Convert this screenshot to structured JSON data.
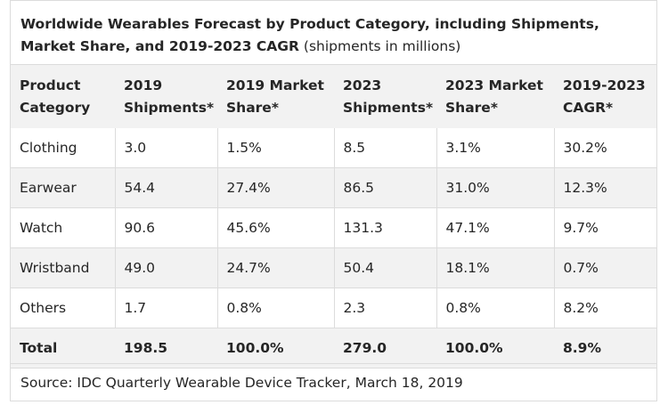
{
  "chart_data": {
    "type": "table",
    "title": "Worldwide Wearables Forecast by Product Category, including Shipments, Market Share, and 2019-2023 CAGR",
    "subtitle": "(shipments in millions)",
    "columns": [
      [
        "Product",
        "Category"
      ],
      [
        "2019",
        "Shipments*"
      ],
      [
        "2019 Market",
        "Share*"
      ],
      [
        "2023",
        "Shipments*"
      ],
      [
        "2023 Market",
        "Share*"
      ],
      [
        "2019-2023",
        "CAGR*"
      ]
    ],
    "rows": [
      [
        "Clothing",
        "3.0",
        "1.5%",
        "8.5",
        "3.1%",
        "30.2%"
      ],
      [
        "Earwear",
        "54.4",
        "27.4%",
        "86.5",
        "31.0%",
        "12.3%"
      ],
      [
        "Watch",
        "90.6",
        "45.6%",
        "131.3",
        "47.1%",
        "9.7%"
      ],
      [
        "Wristband",
        "49.0",
        "24.7%",
        "50.4",
        "18.1%",
        "0.7%"
      ],
      [
        "Others",
        "1.7",
        "0.8%",
        "2.3",
        "0.8%",
        "8.2%"
      ]
    ],
    "total": [
      "Total",
      "198.5",
      "100.0%",
      "279.0",
      "100.0%",
      "8.9%"
    ],
    "source": "Source: IDC Quarterly Wearable Device Tracker, March 18, 2019"
  }
}
